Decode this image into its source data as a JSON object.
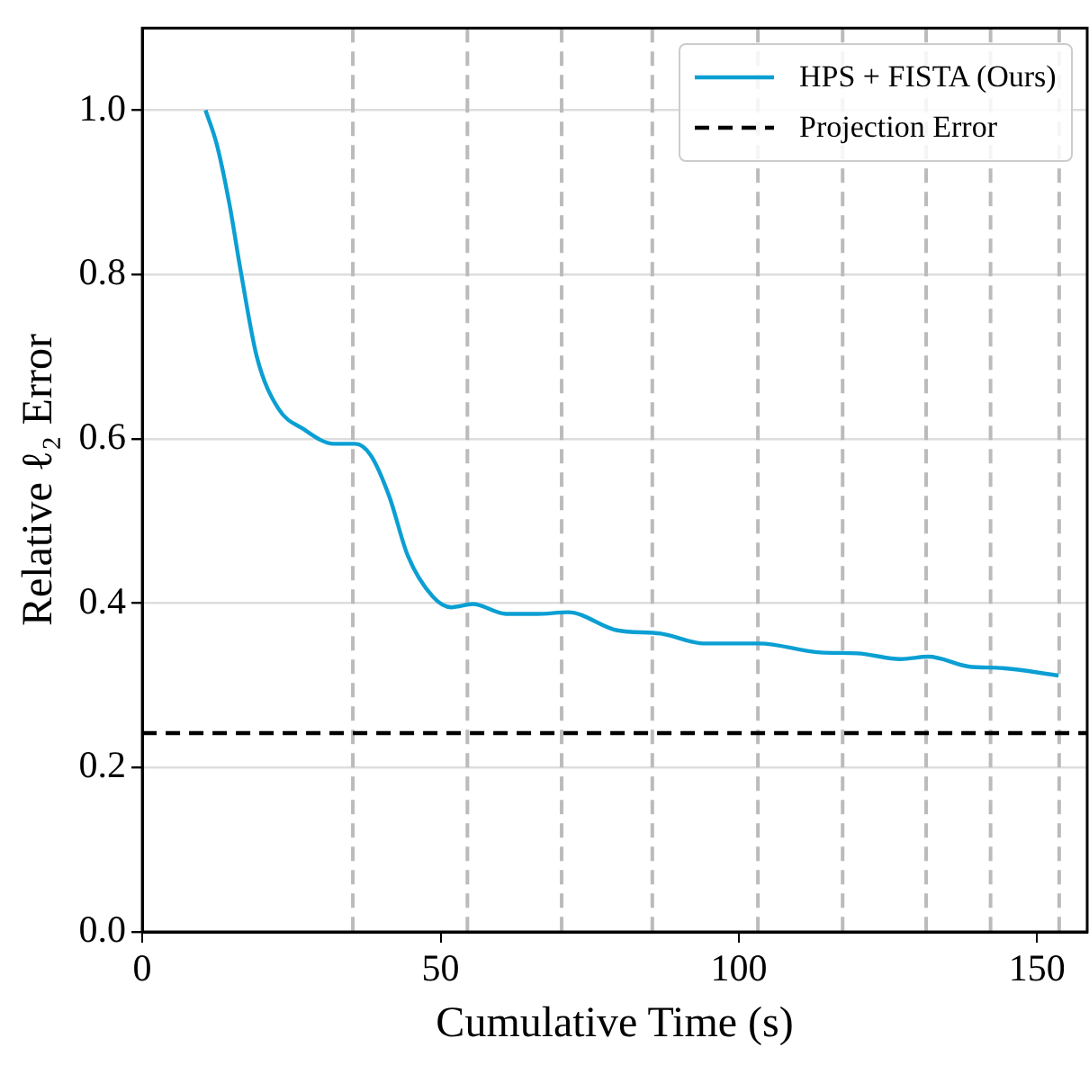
{
  "chart_data": {
    "type": "line",
    "xlabel": "Cumulative Time (s)",
    "ylabel": "Relative ℓ₂ Error",
    "xlim": [
      0,
      158.4
    ],
    "xticks": [
      0,
      50,
      100,
      150
    ],
    "ylim": [
      0,
      1.1
    ],
    "yticks": [
      {
        "value": 0,
        "label": "0.0"
      },
      0.2,
      0.4,
      0.6,
      0.8,
      {
        "value": 1,
        "label": "1.0"
      }
    ],
    "grid": "y",
    "legend": "top right",
    "marker": "none",
    "series": [
      {
        "name": "HPS + FISTA (Ours)",
        "color": "#0b9fd3",
        "line_style": "solid",
        "x": [
          10.6,
          12.5,
          14.6,
          16.6,
          19.2,
          22.8,
          27.0,
          32.1,
          35.7,
          38.3,
          41.4,
          44.5,
          48.7,
          51.8,
          55.4,
          61.0,
          66.2,
          71.4,
          79.6,
          86.9,
          94.1,
          103.4,
          113.7,
          119.9,
          127.1,
          131.8,
          138.5,
          144.2,
          153.6
        ],
        "values": [
          1.0,
          0.958,
          0.886,
          0.8,
          0.7,
          0.637,
          0.612,
          0.594,
          0.594,
          0.58,
          0.53,
          0.458,
          0.408,
          0.395,
          0.399,
          0.387,
          0.387,
          0.389,
          0.367,
          0.363,
          0.351,
          0.351,
          0.34,
          0.339,
          0.332,
          0.335,
          0.323,
          0.321,
          0.312
        ]
      },
      {
        "name": "Projection Error",
        "color": "#000000",
        "line_style": "dashed",
        "x": [
          0,
          158.4
        ],
        "values": [
          0.242,
          0.242
        ]
      }
    ],
    "ref_lines": [
      {
        "axis": "x",
        "value": 35.3,
        "color": "#bbbbbb",
        "line_style": "dashed"
      },
      {
        "axis": "x",
        "value": 54.5,
        "color": "#bbbbbb",
        "line_style": "dashed"
      },
      {
        "axis": "x",
        "value": 70.3,
        "color": "#bbbbbb",
        "line_style": "dashed"
      },
      {
        "axis": "x",
        "value": 85.5,
        "color": "#bbbbbb",
        "line_style": "dashed"
      },
      {
        "axis": "x",
        "value": 103.2,
        "color": "#bbbbbb",
        "line_style": "dashed"
      },
      {
        "axis": "x",
        "value": 117.4,
        "color": "#bbbbbb",
        "line_style": "dashed"
      },
      {
        "axis": "x",
        "value": 131.4,
        "color": "#bbbbbb",
        "line_style": "dashed"
      },
      {
        "axis": "x",
        "value": 142.2,
        "color": "#bbbbbb",
        "line_style": "dashed"
      },
      {
        "axis": "x",
        "value": 153.7,
        "color": "#bbbbbb",
        "line_style": "dashed"
      }
    ]
  }
}
